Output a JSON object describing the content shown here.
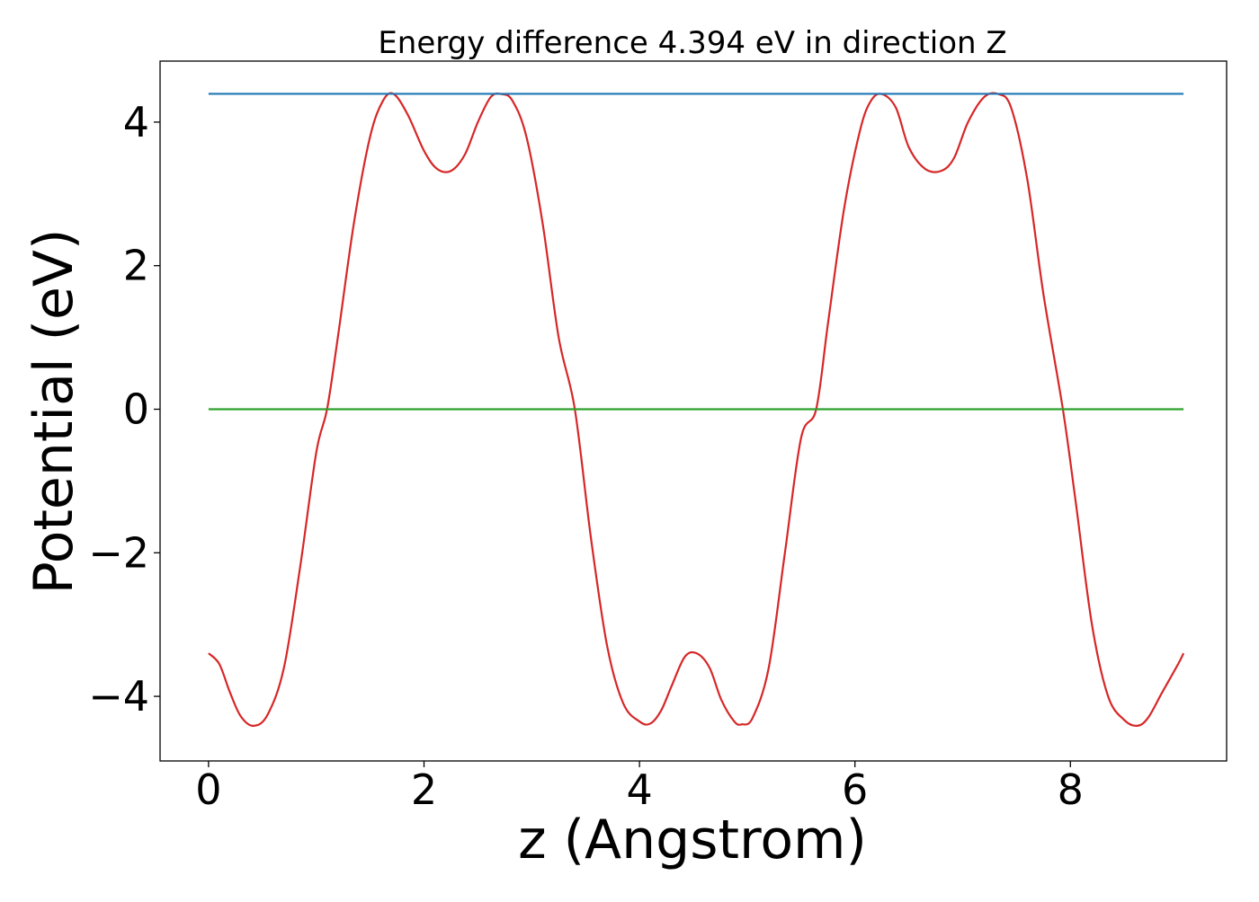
{
  "chart_data": {
    "type": "line",
    "title": "Energy difference 4.394 eV in direction Z",
    "xlabel": "z (Angstrom)",
    "ylabel": "Potential (eV)",
    "xlim": [
      -0.45,
      9.45
    ],
    "ylim": [
      -4.9,
      4.85
    ],
    "grid": false,
    "x_ticks": [
      0,
      2,
      4,
      6,
      8
    ],
    "x_tick_labels": [
      "0",
      "2",
      "4",
      "6",
      "8"
    ],
    "y_ticks": [
      -4,
      -2,
      0,
      2,
      4
    ],
    "y_tick_labels": [
      "−4",
      "−2",
      "0",
      "2",
      "4"
    ],
    "series": [
      {
        "color": "#d62728",
        "x": [
          0.0,
          0.1,
          0.2,
          0.3,
          0.42,
          0.55,
          0.7,
          0.85,
          1.0,
          1.1,
          1.2,
          1.35,
          1.5,
          1.62,
          1.72,
          1.85,
          2.0,
          2.12,
          2.25,
          2.38,
          2.5,
          2.62,
          2.72,
          2.82,
          2.95,
          3.1,
          3.25,
          3.4,
          3.55,
          3.7,
          3.85,
          4.0,
          4.1,
          4.2,
          4.3,
          4.42,
          4.53,
          4.65,
          4.76,
          4.88,
          4.95,
          5.05,
          5.2,
          5.35,
          5.5,
          5.64,
          5.75,
          5.9,
          6.05,
          6.15,
          6.25,
          6.38,
          6.5,
          6.65,
          6.8,
          6.92,
          7.05,
          7.2,
          7.33,
          7.45,
          7.6,
          7.75,
          7.93,
          8.05,
          8.2,
          8.35,
          8.5,
          8.62,
          8.72,
          8.85,
          9.0,
          9.05
        ],
        "y": [
          -3.4,
          -3.55,
          -3.95,
          -4.28,
          -4.41,
          -4.25,
          -3.6,
          -2.2,
          -0.6,
          0.0,
          1.0,
          2.6,
          3.8,
          4.3,
          4.39,
          4.1,
          3.6,
          3.35,
          3.32,
          3.55,
          4.0,
          4.35,
          4.39,
          4.3,
          3.8,
          2.6,
          1.0,
          0.0,
          -1.8,
          -3.3,
          -4.1,
          -4.35,
          -4.38,
          -4.2,
          -3.85,
          -3.45,
          -3.4,
          -3.6,
          -4.05,
          -4.35,
          -4.39,
          -4.3,
          -3.6,
          -2.0,
          -0.4,
          0.0,
          1.2,
          2.8,
          3.9,
          4.3,
          4.39,
          4.2,
          3.65,
          3.35,
          3.32,
          3.5,
          4.0,
          4.35,
          4.39,
          4.2,
          3.2,
          1.6,
          0.0,
          -1.3,
          -3.0,
          -4.0,
          -4.33,
          -4.41,
          -4.3,
          -3.95,
          -3.55,
          -3.4
        ]
      },
      {
        "color": "#1f77b4",
        "x": [
          0.0,
          9.05
        ],
        "y": [
          4.394,
          4.394
        ]
      },
      {
        "color": "#2ca02c",
        "x": [
          0.0,
          9.05
        ],
        "y": [
          0.0,
          0.0
        ]
      }
    ]
  }
}
